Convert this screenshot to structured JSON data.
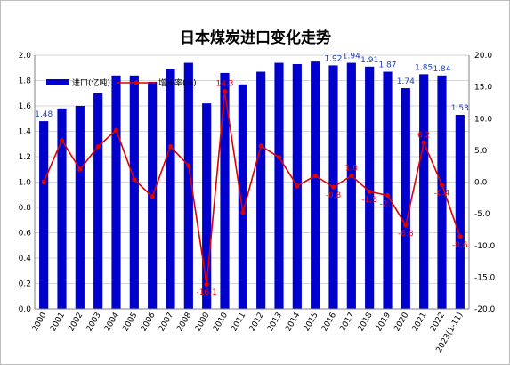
{
  "chart_data": {
    "type": "bar+line",
    "title": "日本煤炭进口变化走势",
    "categories": [
      "2000",
      "2001",
      "2002",
      "2003",
      "2004",
      "2005",
      "2006",
      "2007",
      "2008",
      "2009",
      "2010",
      "2011",
      "2012",
      "2013",
      "2014",
      "2015",
      "2016",
      "2017",
      "2018",
      "2019",
      "2020",
      "2021",
      "2022",
      "2023(1-11)"
    ],
    "series": [
      {
        "name": "进口(亿吨)",
        "kind": "bar",
        "axis": "left",
        "color": "#0000cc",
        "values": [
          1.48,
          1.58,
          1.6,
          1.7,
          1.84,
          1.84,
          1.79,
          1.89,
          1.94,
          1.62,
          1.86,
          1.77,
          1.87,
          1.94,
          1.93,
          1.95,
          1.92,
          1.94,
          1.91,
          1.87,
          1.74,
          1.85,
          1.84,
          1.53
        ]
      },
      {
        "name": "增长率(%)",
        "kind": "line",
        "axis": "right",
        "color": "#e00000",
        "values": [
          0.0,
          6.6,
          2.0,
          5.6,
          8.2,
          0.4,
          -2.3,
          5.6,
          2.6,
          -16.1,
          14.3,
          -4.8,
          5.7,
          3.9,
          -0.6,
          1.0,
          -0.8,
          1.0,
          -1.5,
          -2.1,
          -6.8,
          6.2,
          -0.4,
          -8.6
        ]
      }
    ],
    "bar_labels": [
      {
        "index": 0,
        "text": "1.48"
      },
      {
        "index": 16,
        "text": "1.92"
      },
      {
        "index": 17,
        "text": "1.94"
      },
      {
        "index": 18,
        "text": "1.91"
      },
      {
        "index": 19,
        "text": "1.87"
      },
      {
        "index": 20,
        "text": "1.74"
      },
      {
        "index": 21,
        "text": "1.85"
      },
      {
        "index": 22,
        "text": "1.84"
      },
      {
        "index": 23,
        "text": "1.53"
      }
    ],
    "line_labels": [
      {
        "index": 9,
        "text": "-16.1"
      },
      {
        "index": 10,
        "text": "14.3"
      },
      {
        "index": 16,
        "text": "-0.8"
      },
      {
        "index": 17,
        "text": "1.0"
      },
      {
        "index": 18,
        "text": "-1.5"
      },
      {
        "index": 19,
        "text": "-2.1"
      },
      {
        "index": 20,
        "text": "-6.8"
      },
      {
        "index": 21,
        "text": "6.2"
      },
      {
        "index": 22,
        "text": "-0.4"
      },
      {
        "index": 23,
        "text": "-8.6"
      }
    ],
    "y_left": {
      "min": 0.0,
      "max": 2.0,
      "ticks": [
        "0.0",
        "0.2",
        "0.4",
        "0.6",
        "0.8",
        "1.0",
        "1.2",
        "1.4",
        "1.6",
        "1.8",
        "2.0"
      ]
    },
    "y_right": {
      "min": -20.0,
      "max": 20.0,
      "ticks": [
        "-20.0",
        "-15.0",
        "-10.0",
        "-5.0",
        "0.0",
        "5.0",
        "10.0",
        "15.0",
        "20.0"
      ]
    },
    "grid": "horizontal",
    "legend_position": "top-left"
  }
}
